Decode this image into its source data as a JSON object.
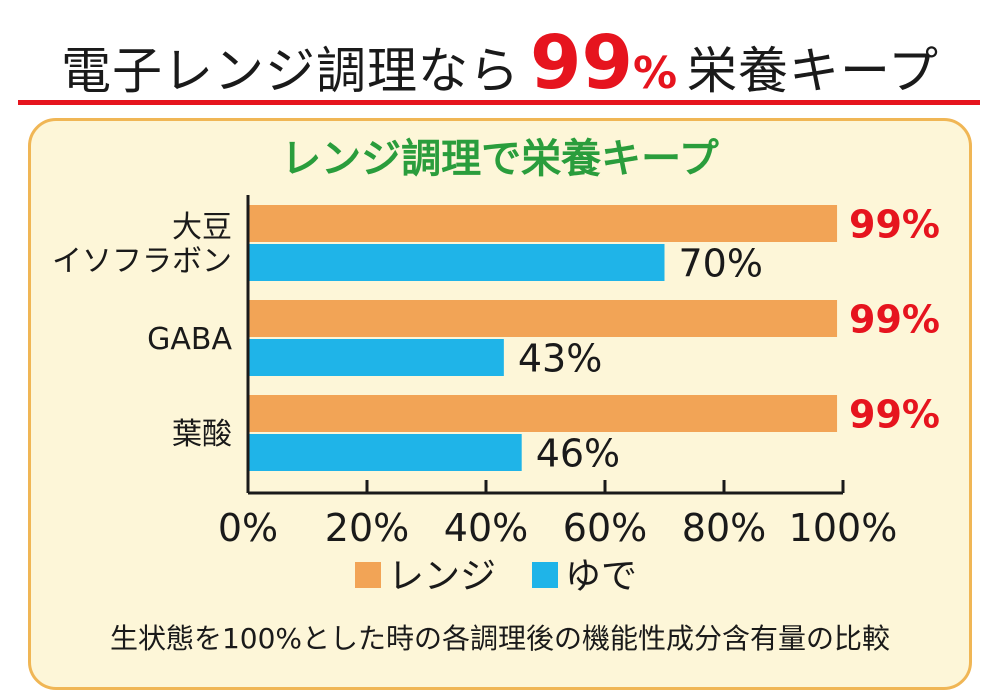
{
  "headline": {
    "prefix": "電子レンジ調理なら",
    "percent_number": "99",
    "percent_sign": "%",
    "suffix": "栄養キープ"
  },
  "colors": {
    "accent_red": "#e6141e",
    "title_green": "#2a9d3c",
    "range_orange": "#f2a456",
    "boil_blue": "#1fb4e8",
    "panel_bg": "#fdf6d8",
    "panel_border": "#f0b655"
  },
  "chart_data": {
    "type": "bar",
    "orientation": "horizontal",
    "title": "レンジ調理で栄養キープ",
    "categories": [
      [
        "大豆",
        "イソフラボン"
      ],
      [
        "GABA"
      ],
      [
        "葉酸"
      ]
    ],
    "series": [
      {
        "name": "レンジ",
        "values": [
          99,
          99,
          99
        ],
        "labels": [
          "99%",
          "99%",
          "99%"
        ],
        "color": "#f2a456"
      },
      {
        "name": "ゆで",
        "values": [
          70,
          43,
          46
        ],
        "labels": [
          "70%",
          "43%",
          "46%"
        ],
        "color": "#1fb4e8"
      }
    ],
    "xlim": [
      0,
      100
    ],
    "xticks": [
      0,
      20,
      40,
      60,
      80,
      100
    ],
    "xtick_labels": [
      "0%",
      "20%",
      "40%",
      "60%",
      "80%",
      "100%"
    ],
    "legend_placement": "bottom",
    "grid": false,
    "footnote": "生状態を100%とした時の各調理後の機能性成分含有量の比較"
  }
}
